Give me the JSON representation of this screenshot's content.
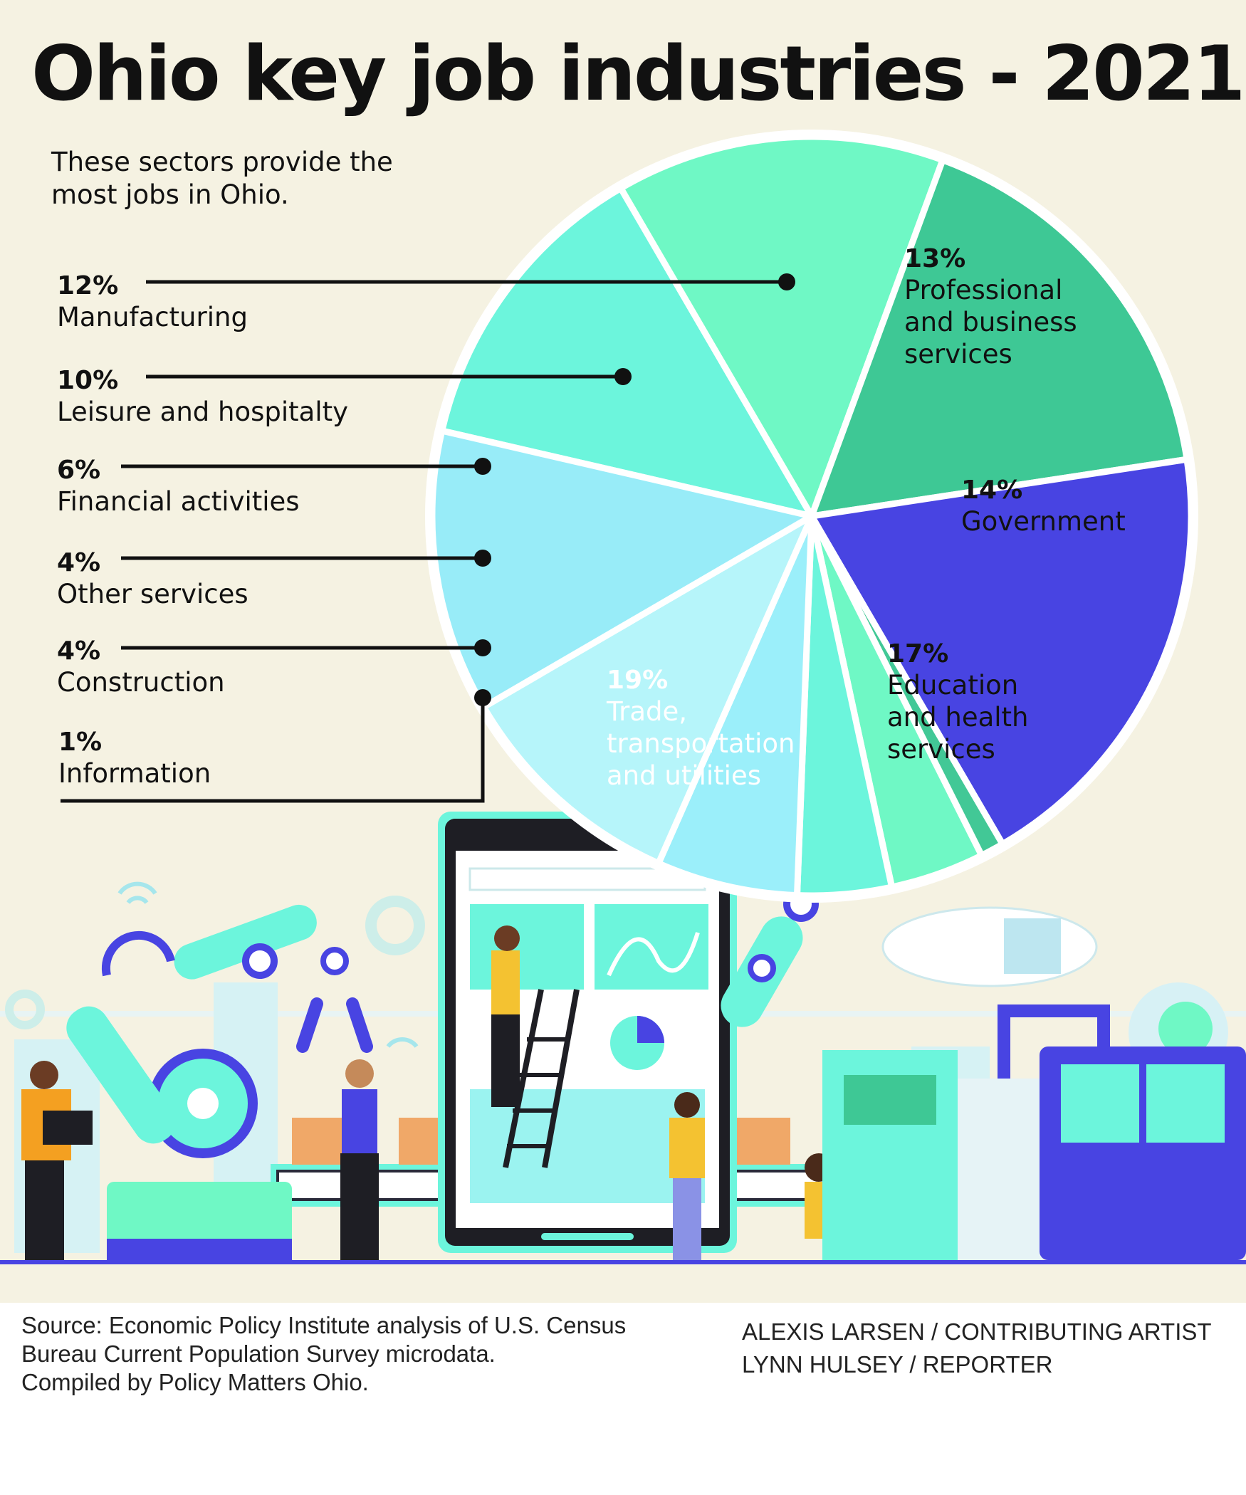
{
  "title": "Ohio key job industries - 2021",
  "subtitle": "These sectors provide the most jobs in Ohio.",
  "chart_data": {
    "type": "pie",
    "title": "Ohio key job industries - 2021",
    "unit": "%",
    "slices": [
      {
        "label": "Professional and business services",
        "value": 13,
        "value_label": "13%",
        "color": "#6cf5dc"
      },
      {
        "label": "Government",
        "value": 14,
        "value_label": "14%",
        "color": "#6ff8c5"
      },
      {
        "label": "Education and health services",
        "value": 17,
        "value_label": "17%",
        "color": "#3ec895"
      },
      {
        "label": "Trade, transportation and utilities",
        "value": 19,
        "value_label": "19%",
        "color": "#4844e2"
      },
      {
        "label": "Information",
        "value": 1,
        "value_label": "1%",
        "color": "#42c896"
      },
      {
        "label": "Construction",
        "value": 4,
        "value_label": "4%",
        "color": "#6ff8c5"
      },
      {
        "label": "Other services",
        "value": 4,
        "value_label": "4%",
        "color": "#6cf5dc"
      },
      {
        "label": "Financial activities",
        "value": 6,
        "value_label": "6%",
        "color": "#9beffa"
      },
      {
        "label": "Leisure and hospitalty",
        "value": 10,
        "value_label": "10%",
        "color": "#b6f5fa"
      },
      {
        "label": "Manufacturing",
        "value": 12,
        "value_label": "12%",
        "color": "#98ecf8"
      }
    ]
  },
  "labels": {
    "professional": {
      "pct": "13%",
      "lines": [
        "Professional",
        "and business",
        "services"
      ]
    },
    "government": {
      "pct": "14%",
      "lines": [
        "Government"
      ]
    },
    "education": {
      "pct": "17%",
      "lines": [
        "Education",
        "and health",
        "services"
      ]
    },
    "trade": {
      "pct": "19%",
      "lines": [
        "Trade,",
        "transportation",
        "and utilities"
      ]
    },
    "manufacturing": {
      "pct": "12%",
      "lines": [
        "Manufacturing"
      ]
    },
    "leisure": {
      "pct": "10%",
      "lines": [
        "Leisure and hospitalty"
      ]
    },
    "financial": {
      "pct": "6%",
      "lines": [
        "Financial activities"
      ]
    },
    "other": {
      "pct": "4%",
      "lines": [
        "Other services"
      ]
    },
    "construction": {
      "pct": "4%",
      "lines": [
        "Construction"
      ]
    },
    "information": {
      "pct": "1%",
      "lines": [
        "Information"
      ]
    }
  },
  "footer": {
    "source_lines": [
      "Source: Economic Policy Institute analysis of U.S. Census",
      "Bureau Current Population Survey microdata.",
      "Compiled by Policy Matters Ohio."
    ],
    "credit_lines": [
      "ALEXIS LARSEN / CONTRIBUTING ARTIST",
      "LYNN HULSEY / REPORTER"
    ]
  },
  "colors": {
    "background": "#f5f2e2",
    "text": "#111111",
    "divider": "#ffffff"
  }
}
